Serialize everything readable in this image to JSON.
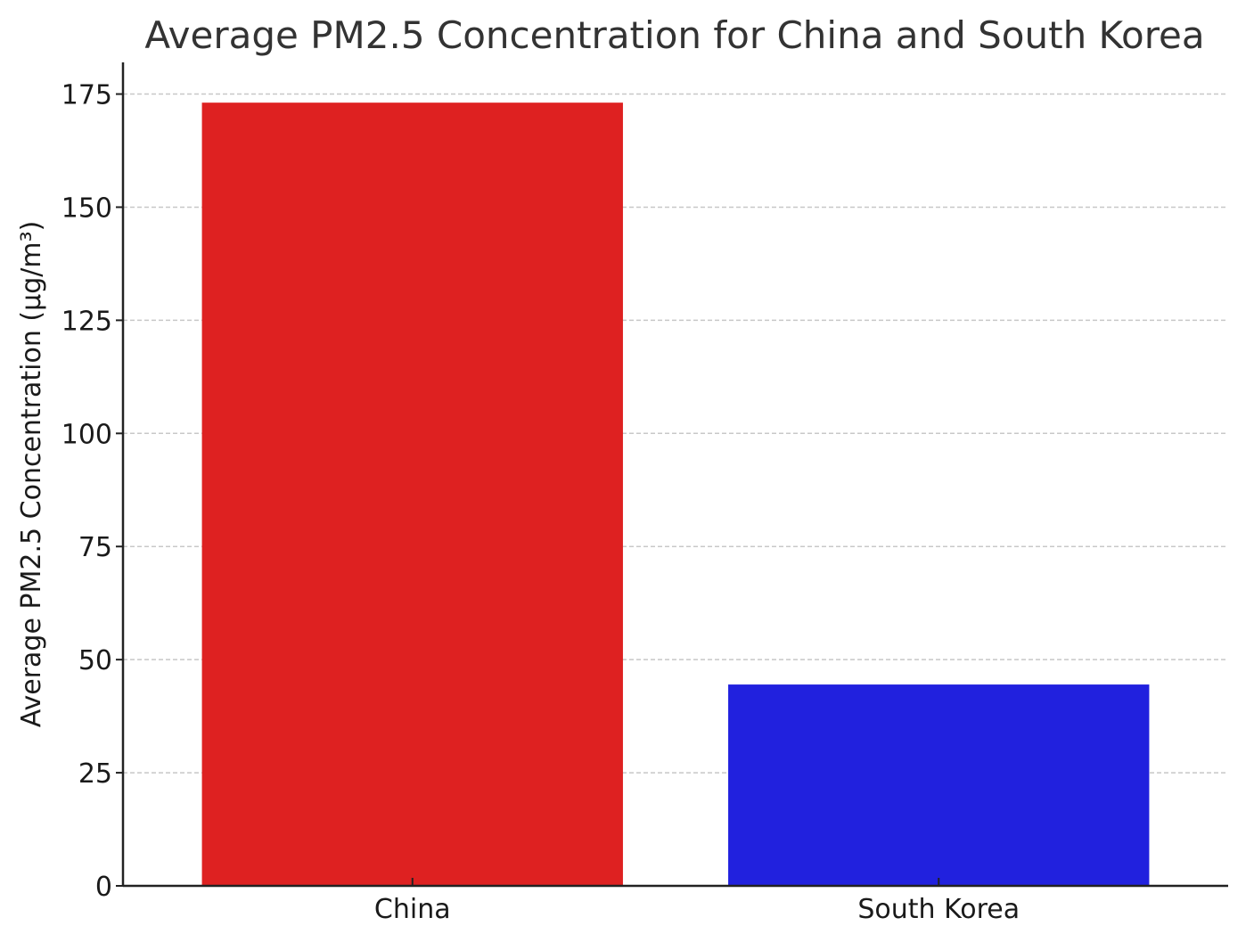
{
  "chart_data": {
    "type": "bar",
    "title": "Average PM2.5 Concentration for China and South Korea",
    "xlabel": "",
    "ylabel": "Average PM2.5 Concentration (µg/m³)",
    "categories": [
      "China",
      "South Korea"
    ],
    "values": [
      173.1,
      44.5
    ],
    "colors": [
      "#de2121",
      "#2121de"
    ],
    "ylim": [
      0,
      182
    ],
    "yticks": [
      0,
      25,
      50,
      75,
      100,
      125,
      150,
      175
    ],
    "grid": "y-dashed",
    "legend": "none"
  }
}
